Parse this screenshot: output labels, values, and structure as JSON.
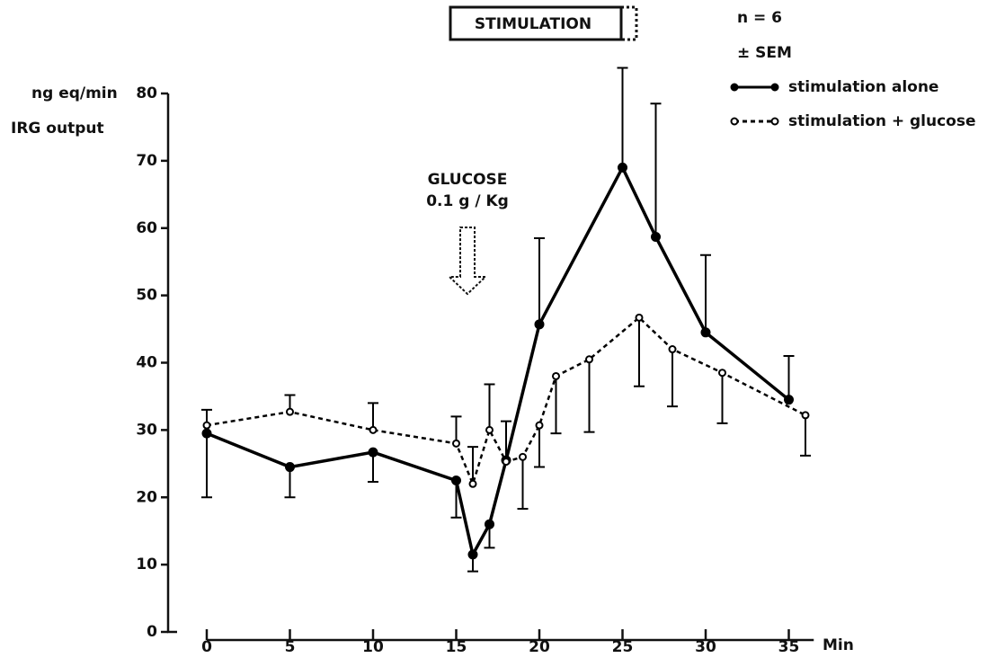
{
  "chart_data": {
    "type": "line",
    "y_label_line1": "ng eq/min",
    "y_label_line2": "IRG output",
    "x_unit": "Min",
    "annotations": {
      "stimulation": "STIMULATION",
      "n": "n = 6",
      "sem": "± SEM",
      "glucose": "GLUCOSE",
      "glucose_dose": "0.1 g / Kg"
    },
    "xlim": [
      0,
      36.5
    ],
    "xticks": [
      0,
      5,
      10,
      15,
      20,
      25,
      30,
      35
    ],
    "ylim": [
      0,
      80
    ],
    "yticks": [
      0,
      10,
      20,
      30,
      40,
      50,
      60,
      70,
      80
    ],
    "series": [
      {
        "name": "stimulation alone",
        "color": "#000000",
        "line_style": "solid",
        "marker": "filled",
        "x": [
          0,
          5,
          10,
          15,
          16,
          17,
          18,
          20,
          25,
          27,
          30,
          35
        ],
        "values": [
          29.5,
          24.5,
          26.7,
          22.5,
          11.5,
          16,
          25.5,
          45.7,
          69,
          58.7,
          44.5,
          34.5
        ],
        "error_low": [
          9.5,
          4.5,
          4.4,
          5.5,
          2.5,
          3.5,
          null,
          null,
          null,
          null,
          null,
          null
        ],
        "error_high": [
          null,
          null,
          null,
          null,
          null,
          null,
          5.8,
          12.8,
          14.8,
          19.8,
          11.5,
          6.5
        ]
      },
      {
        "name": "stimulation + glucose",
        "color": "#000000",
        "line_style": "dashed",
        "marker": "open",
        "x": [
          0,
          5,
          10,
          15,
          16,
          17,
          18,
          19,
          20,
          21,
          23,
          26,
          28,
          31,
          36
        ],
        "values": [
          30.7,
          32.7,
          30,
          28,
          22,
          30,
          25.3,
          26,
          30.7,
          38,
          40.5,
          46.7,
          42,
          38.5,
          32.2
        ],
        "error_low": [
          null,
          null,
          null,
          null,
          null,
          null,
          null,
          7.7,
          6.2,
          8.5,
          10.8,
          10.2,
          8.5,
          7.5,
          6
        ],
        "error_high": [
          2.3,
          2.5,
          4,
          4,
          5.5,
          6.8,
          null,
          null,
          null,
          null,
          null,
          null,
          null,
          null,
          null
        ]
      }
    ]
  }
}
